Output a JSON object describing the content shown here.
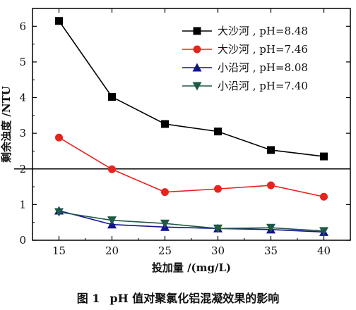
{
  "caption": {
    "figure_number": "图 1",
    "text": "pH 值对聚氯化铝混凝效果的影响"
  },
  "colors": {
    "series_black": "#000000",
    "series_red": "#e8231e",
    "series_navy": "#14148c",
    "series_green": "#1e5a46",
    "reference_line": "#000000"
  },
  "chart_data": {
    "type": "line",
    "title": "",
    "xlabel": "投加量 /(mg/L)",
    "ylabel": "剩余浊度 /NTU",
    "xlim": [
      12.5,
      42.5
    ],
    "ylim": [
      0,
      6.5
    ],
    "xticks": [
      15,
      20,
      25,
      30,
      35,
      40
    ],
    "yticks": [
      0,
      1,
      2,
      3,
      4,
      5,
      6
    ],
    "x": [
      15,
      20,
      25,
      30,
      35,
      40
    ],
    "grid": false,
    "legend_position": "top-right",
    "reference_line": {
      "y": 2
    },
    "series": [
      {
        "name": "大沙河 , pH=8.48",
        "marker": "square",
        "color": "#000000",
        "values": [
          6.15,
          4.02,
          3.26,
          3.05,
          2.53,
          2.35
        ]
      },
      {
        "name": "大沙河 , pH=7.46",
        "marker": "circle",
        "color": "#e8231e",
        "values": [
          2.88,
          1.99,
          1.35,
          1.44,
          1.54,
          1.22
        ]
      },
      {
        "name": "小沿河 , pH=8.08",
        "marker": "triangle-up",
        "color": "#14148c",
        "values": [
          0.83,
          0.44,
          0.37,
          0.33,
          0.3,
          0.23
        ]
      },
      {
        "name": "小沿河 , pH=7.40",
        "marker": "triangle-down",
        "color": "#1e5a46",
        "values": [
          0.79,
          0.56,
          0.47,
          0.33,
          0.35,
          0.26
        ]
      }
    ]
  }
}
